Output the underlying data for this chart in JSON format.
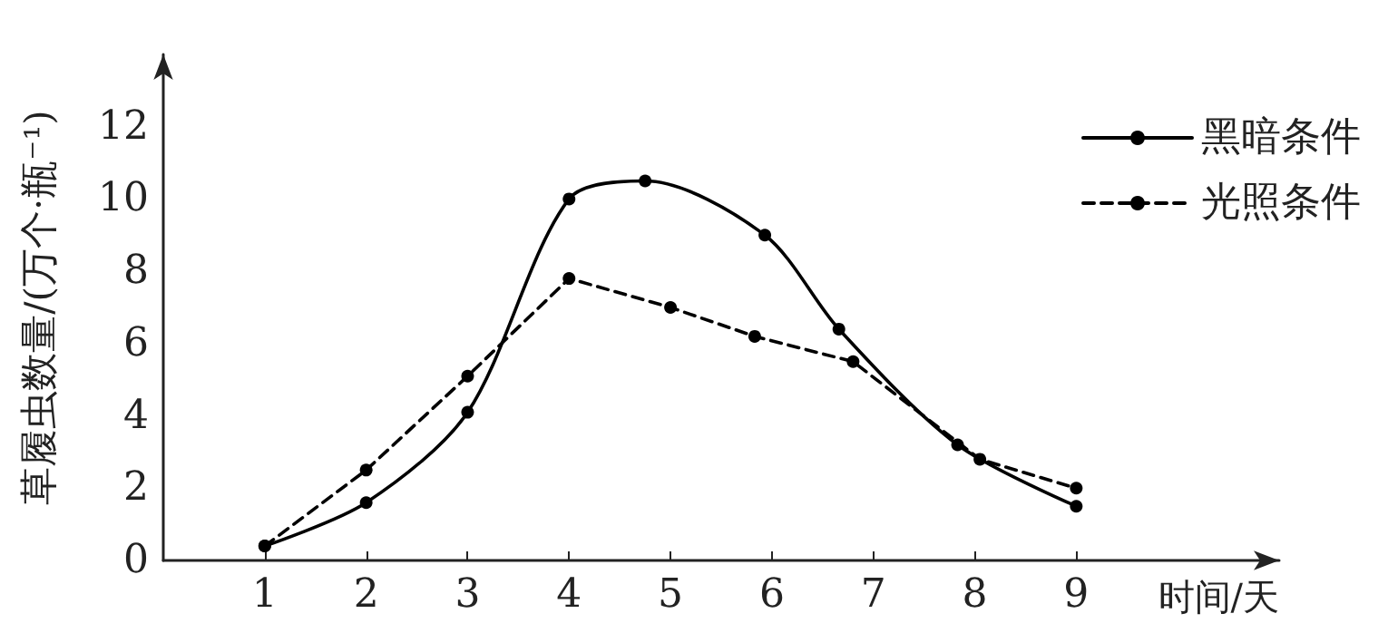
{
  "chart_data": {
    "type": "line",
    "xlabel": "时间/天",
    "ylabel": "草履虫数量/(万个·瓶⁻¹)",
    "xlim": [
      0,
      11
    ],
    "xticks": [
      1,
      2,
      3,
      4,
      5,
      6,
      7,
      8,
      9
    ],
    "ylim": [
      0,
      14
    ],
    "yticks": [
      0,
      2,
      4,
      6,
      8,
      10,
      12
    ],
    "legend": "top right",
    "marker": "circle",
    "grid": false,
    "series": [
      {
        "name": "黑暗条件",
        "color": "#000000",
        "line_style": "solid",
        "x": [
          1,
          2,
          3,
          4,
          4.75,
          5.93,
          6.66,
          7.83,
          9
        ],
        "values": [
          0.4,
          1.6,
          4.1,
          10.0,
          10.5,
          9.0,
          6.4,
          3.2,
          1.5
        ]
      },
      {
        "name": "光照条件",
        "color": "#000000",
        "line_style": "dashed",
        "x": [
          1,
          2,
          3,
          4,
          5,
          5.83,
          6.8,
          8.05,
          9
        ],
        "values": [
          0.4,
          2.5,
          5.1,
          7.8,
          7.0,
          6.2,
          5.5,
          2.8,
          2.0
        ]
      }
    ]
  }
}
